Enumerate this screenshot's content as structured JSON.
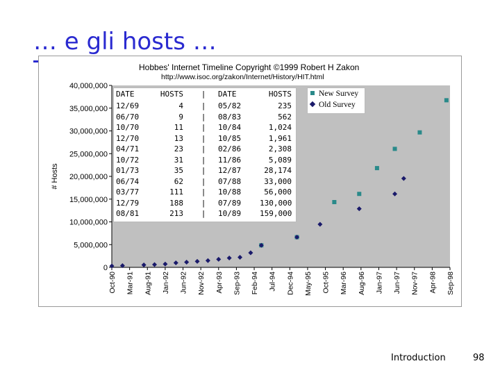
{
  "slide": {
    "title": "… e gli hosts …",
    "footer": "Introduction",
    "page_number": "98"
  },
  "chart_data": {
    "type": "scatter",
    "title": "Hobbes' Internet Timeline Copyright ©1999 Robert H Zakon",
    "subtitle": "http://www.isoc.org/zakon/Internet/History/HIT.html",
    "ylabel": "# Hosts",
    "xlabel": "",
    "ylim": [
      0,
      40000000
    ],
    "y_ticks": [
      "0",
      "5,000,000",
      "10,000,000",
      "15,000,000",
      "20,000,000",
      "25,000,000",
      "30,000,000",
      "35,000,000",
      "40,000,000"
    ],
    "categories": [
      "Oct-90",
      "Mar-91",
      "Aug-91",
      "Jan-92",
      "Jun-92",
      "Nov-92",
      "Apr-93",
      "Sep-93",
      "Feb-94",
      "Jul-94",
      "Dec-94",
      "May-95",
      "Oct-95",
      "Mar-96",
      "Aug-96",
      "Jan-97",
      "Jun-97",
      "Nov-97",
      "Apr-98",
      "Sep-98"
    ],
    "grid": false,
    "legend_position": "top-right",
    "colors": {
      "plot_bg": "#c0c0c0",
      "new_survey": "#2a8a8a",
      "old_survey": "#1a1a6a"
    },
    "series": [
      {
        "name": "New Survey",
        "marker": "square",
        "points": [
          [
            8.4,
            4850000
          ],
          [
            10.4,
            6640000
          ],
          [
            12.5,
            14350000
          ],
          [
            13.9,
            16150000
          ],
          [
            14.9,
            21820000
          ],
          [
            15.9,
            26050000
          ],
          [
            17.3,
            29670000
          ],
          [
            18.8,
            36740000
          ]
        ]
      },
      {
        "name": "Old Survey",
        "marker": "diamond",
        "points": [
          [
            0,
            313000
          ],
          [
            0.6,
            376000
          ],
          [
            1.8,
            535000
          ],
          [
            2.4,
            617000
          ],
          [
            3.0,
            727000
          ],
          [
            3.6,
            992000
          ],
          [
            4.2,
            1136000
          ],
          [
            4.8,
            1313000
          ],
          [
            5.4,
            1486000
          ],
          [
            6.0,
            1776000
          ],
          [
            6.6,
            2056000
          ],
          [
            7.2,
            2217000
          ],
          [
            7.8,
            3212000
          ],
          [
            8.4,
            4852000
          ],
          [
            10.4,
            6642000
          ],
          [
            11.7,
            9472000
          ],
          [
            13.9,
            12881000
          ],
          [
            15.9,
            16146000
          ],
          [
            16.4,
            19540000
          ]
        ]
      }
    ],
    "table": {
      "headers": [
        "DATE",
        "HOSTS",
        "|",
        "DATE",
        "HOSTS"
      ],
      "rows": [
        [
          "12/69",
          "4",
          "|",
          "05/82",
          "235"
        ],
        [
          "06/70",
          "9",
          "|",
          "08/83",
          "562"
        ],
        [
          "10/70",
          "11",
          "|",
          "10/84",
          "1,024"
        ],
        [
          "12/70",
          "13",
          "|",
          "10/85",
          "1,961"
        ],
        [
          "04/71",
          "23",
          "|",
          "02/86",
          "2,308"
        ],
        [
          "10/72",
          "31",
          "|",
          "11/86",
          "5,089"
        ],
        [
          "01/73",
          "35",
          "|",
          "12/87",
          "28,174"
        ],
        [
          "06/74",
          "62",
          "|",
          "07/88",
          "33,000"
        ],
        [
          "03/77",
          "111",
          "|",
          "10/88",
          "56,000"
        ],
        [
          "12/79",
          "188",
          "|",
          "07/89",
          "130,000"
        ],
        [
          "08/81",
          "213",
          "|",
          "10/89",
          "159,000"
        ]
      ]
    }
  }
}
